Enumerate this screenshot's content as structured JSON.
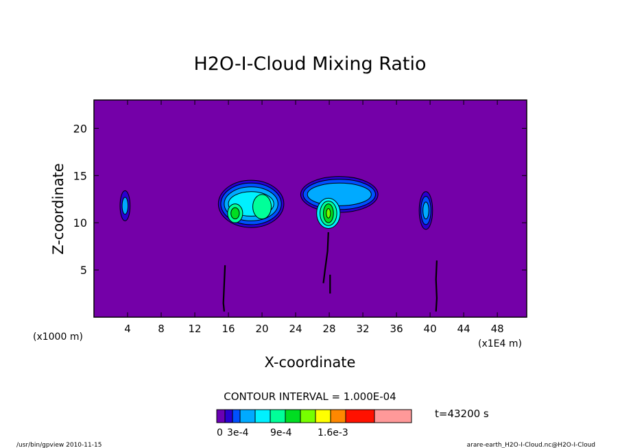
{
  "chart_data": {
    "type": "heatmap",
    "title": "H2O-I-Cloud Mixing Ratio",
    "xlabel": "X-coordinate",
    "ylabel": "Z-coordinate",
    "x_unit_left": "(x1000 m)",
    "x_unit_right": "(x1E4 m)",
    "xlim": [
      0,
      51.5
    ],
    "ylim": [
      0,
      23
    ],
    "x_ticks": [
      4,
      8,
      12,
      16,
      20,
      24,
      28,
      32,
      36,
      40,
      44,
      48
    ],
    "y_ticks": [
      5,
      10,
      15,
      20
    ],
    "contour_interval_text": "CONTOUR INTERVAL = 1.000E-04",
    "time_text": "t=43200 s",
    "colorbar": {
      "colors": [
        "#6a00b4",
        "#2a00d0",
        "#0050ff",
        "#00aaff",
        "#00f0ff",
        "#00ff99",
        "#00dd22",
        "#77ff00",
        "#ffff00",
        "#ff8800",
        "#ff1100",
        "#ff9999"
      ],
      "tick_labels": [
        "0",
        "3e-4",
        "9e-4",
        "1.6e-3"
      ]
    },
    "background_color": "#7400a8",
    "regions": [
      {
        "name": "cloud-x4",
        "center": [
          3.7,
          11.8
        ],
        "layers": [
          {
            "level": 1,
            "rx": 0.6,
            "ry": 1.6
          },
          {
            "level": 3,
            "rx": 0.35,
            "ry": 0.9
          }
        ]
      },
      {
        "name": "cloud-x18",
        "center": [
          18.7,
          12.0
        ],
        "layers": [
          {
            "level": 1,
            "rx": 3.9,
            "ry": 2.5
          },
          {
            "level": 2,
            "rx": 3.6,
            "ry": 2.2
          },
          {
            "level": 3,
            "rx": 3.2,
            "ry": 1.8
          },
          {
            "level": 4,
            "rx": 2.7,
            "ry": 1.3
          }
        ]
      },
      {
        "name": "core-x17",
        "center": [
          16.8,
          11.0
        ],
        "layers": [
          {
            "level": 5,
            "rx": 0.9,
            "ry": 1.0
          },
          {
            "level": 6,
            "rx": 0.5,
            "ry": 0.6
          }
        ]
      },
      {
        "name": "core-x20",
        "center": [
          20.0,
          11.7
        ],
        "layers": [
          {
            "level": 5,
            "rx": 1.1,
            "ry": 1.3
          }
        ]
      },
      {
        "name": "cloud-x29",
        "center": [
          29.2,
          13.0
        ],
        "layers": [
          {
            "level": 1,
            "rx": 4.6,
            "ry": 1.9
          },
          {
            "level": 2,
            "rx": 4.3,
            "ry": 1.6
          },
          {
            "level": 3,
            "rx": 3.8,
            "ry": 1.2
          }
        ]
      },
      {
        "name": "core-x28",
        "center": [
          27.9,
          11.0
        ],
        "layers": [
          {
            "level": 4,
            "rx": 1.4,
            "ry": 1.6
          },
          {
            "level": 5,
            "rx": 1.0,
            "ry": 1.3
          },
          {
            "level": 6,
            "rx": 0.6,
            "ry": 1.0
          },
          {
            "level": 7,
            "rx": 0.25,
            "ry": 0.5
          }
        ]
      },
      {
        "name": "cloud-x39",
        "center": [
          39.5,
          11.3
        ],
        "layers": [
          {
            "level": 1,
            "rx": 0.8,
            "ry": 2.0
          },
          {
            "level": 2,
            "rx": 0.6,
            "ry": 1.5
          },
          {
            "level": 3,
            "rx": 0.35,
            "ry": 0.9
          }
        ]
      }
    ],
    "filaments": [
      {
        "name": "filament-x16",
        "points": [
          [
            15.6,
            5.5
          ],
          [
            15.5,
            3.5
          ],
          [
            15.4,
            1.5
          ],
          [
            15.5,
            0.6
          ]
        ]
      },
      {
        "name": "filament-x28",
        "points": [
          [
            27.9,
            9.0
          ],
          [
            27.8,
            7.0
          ],
          [
            27.5,
            5.0
          ],
          [
            27.3,
            3.6
          ]
        ]
      },
      {
        "name": "filament-x28b",
        "points": [
          [
            28.1,
            4.5
          ],
          [
            28.1,
            2.5
          ]
        ]
      },
      {
        "name": "filament-x41",
        "points": [
          [
            40.8,
            6.0
          ],
          [
            40.7,
            4.0
          ],
          [
            40.8,
            2.0
          ],
          [
            40.7,
            0.6
          ]
        ]
      }
    ]
  },
  "footer": {
    "left": "/usr/bin/gpview   2010-11-15",
    "right": "arare-earth_H2O-I-Cloud.nc@H2O-I-Cloud"
  }
}
